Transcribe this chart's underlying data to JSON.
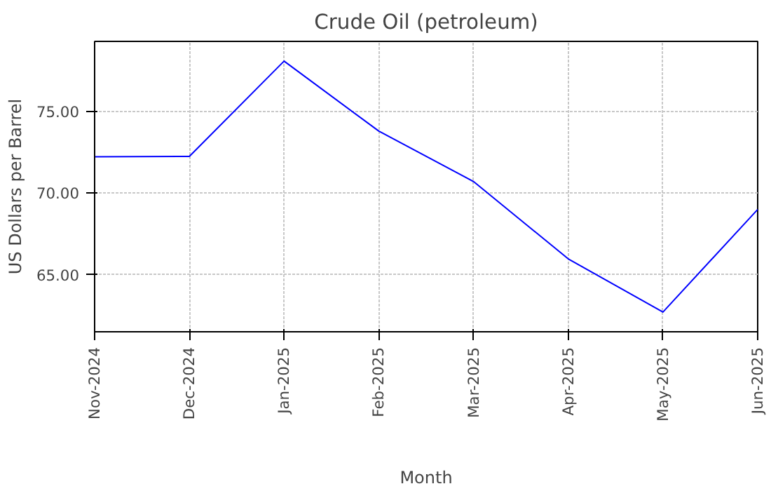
{
  "chart_data": {
    "type": "line",
    "title": "Crude Oil (petroleum)",
    "xlabel": "Month",
    "ylabel": "US Dollars per Barrel",
    "categories": [
      "Nov-2024",
      "Dec-2024",
      "Jan-2025",
      "Feb-2025",
      "Mar-2025",
      "Apr-2025",
      "May-2025",
      "Jun-2025"
    ],
    "series": [
      {
        "color": "#0000ff",
        "values": [
          72.23,
          72.25,
          78.09,
          73.8,
          70.71,
          65.97,
          62.71,
          69.0
        ]
      }
    ],
    "ylim": [
      61.5,
      79.3
    ],
    "yticks": [
      {
        "value": 65,
        "label": "65.00"
      },
      {
        "value": 70,
        "label": "70.00"
      },
      {
        "value": 75,
        "label": "75.00"
      }
    ],
    "grid": true,
    "marker": "none",
    "line_style": "solid"
  }
}
